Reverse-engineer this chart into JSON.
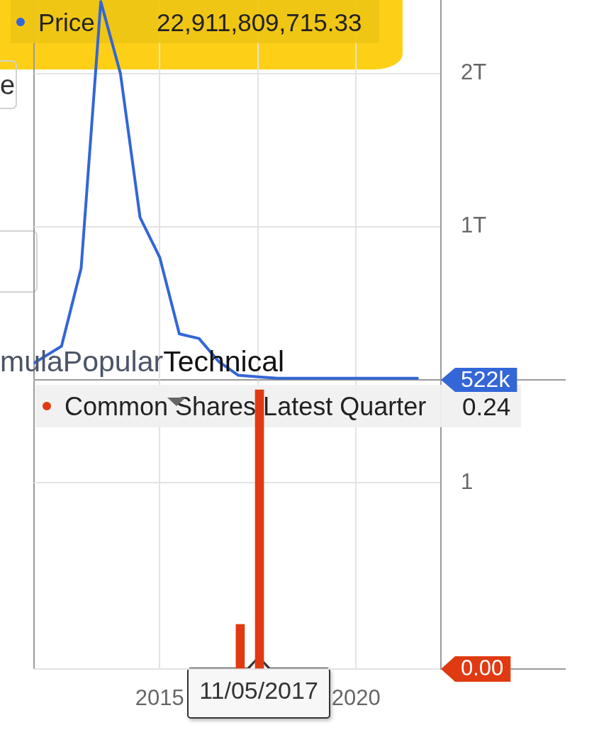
{
  "chart_data": [
    {
      "type": "line",
      "series": [
        {
          "name": "Price",
          "color": "#3366d6",
          "values": [
            110000000000,
            220000000000,
            730000000000,
            2470000000000,
            2000000000000,
            1060000000000,
            800000000000,
            300000000000,
            270000000000,
            120000000000,
            30000000000,
            20000000000,
            10000000000,
            10000000000,
            10000000000,
            10000000000,
            10000000000
          ]
        }
      ],
      "x": [
        2011.8,
        2012.5,
        2013,
        2013.5,
        2014,
        2014.5,
        2015,
        2015.5,
        2016,
        2016.5,
        2017,
        2017.5,
        2018,
        2019,
        2020,
        2021,
        2021.56
      ],
      "xlim": [
        2011.8,
        2022.16
      ],
      "xticks": [
        {
          "value": 2015,
          "label": null
        },
        {
          "value": 2017.5,
          "label": null
        },
        {
          "value": 2020,
          "label": null
        }
      ],
      "ylim": [
        0,
        2480000000000
      ],
      "yticks": [
        {
          "value": 1000000000000,
          "label": "1T"
        },
        {
          "value": 2000000000000,
          "label": "2T"
        }
      ],
      "grid": true,
      "legend": "top left",
      "tick_labels": "y",
      "annotations": [
        "22,911,809,715.33",
        "e",
        "mula",
        "Popular",
        "Technical",
        "522k"
      ]
    },
    {
      "type": "bar",
      "series": [
        {
          "name": "Common Shares Latest Quarter",
          "color": "#e03a12",
          "values": [
            0.24,
            1.5
          ]
        }
      ],
      "x": [
        2017.05,
        2017.54
      ],
      "xlim": [
        2011.8,
        2022.16
      ],
      "xticks": [
        2015,
        {
          "value": 2017.5,
          "label": null
        },
        2020
      ],
      "ylim": [
        0,
        1.55
      ],
      "yticks": [
        {
          "value": 0,
          "label": "0.00"
        },
        1
      ],
      "grid": true,
      "legend": "top left",
      "annotations": [
        "0.24",
        "11/05/2017"
      ]
    }
  ]
}
